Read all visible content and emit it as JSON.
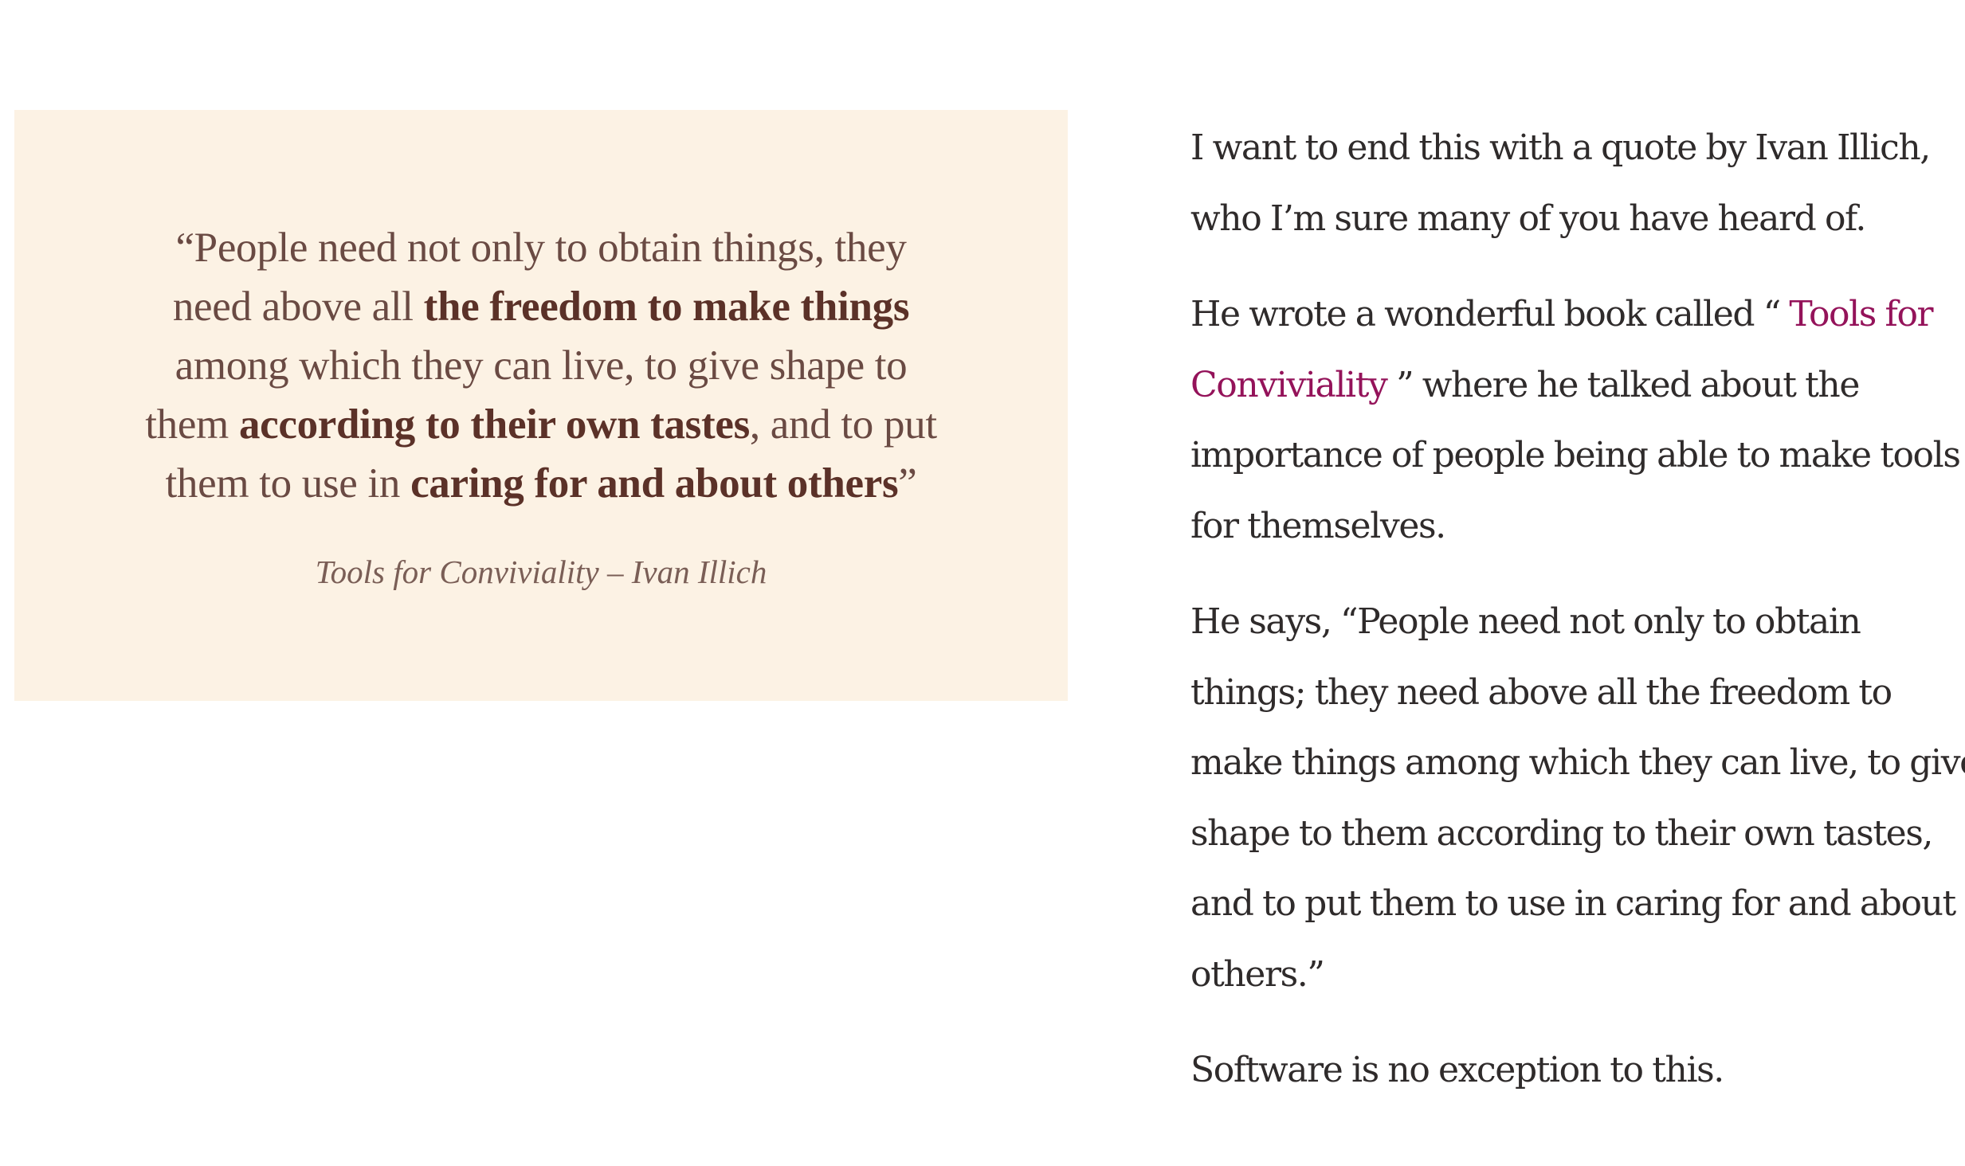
{
  "quote_card": {
    "lines": [
      {
        "plain1": "“People need not only to obtain things, they"
      },
      {
        "plain1": "need above all ",
        "bold1": "the freedom to make things"
      },
      {
        "plain1": "among which they can live, to give shape to"
      },
      {
        "plain1": "them ",
        "bold1": "according to their own tastes",
        "plain2": ", and to put"
      },
      {
        "plain1": "them to use in ",
        "bold1": "caring for and about others",
        "plain2": "”"
      }
    ],
    "source": "Tools for Conviviality – Ivan Illich"
  },
  "article": {
    "p1": {
      "line1": "I want to end this with a quote by Ivan Illich,",
      "line2": "who I’m sure many of you have heard of."
    },
    "p2": {
      "line1_before": "He wrote a wonderful book called “ ",
      "link_part1": "Tools for",
      "link_part2": "Conviviality",
      "line2_after": " ” where he talked about the",
      "line3": "importance of people being able to make tools",
      "line4": "for themselves."
    },
    "p3": {
      "line1": "He says, “People need not only to obtain",
      "line2": "things; they need above all the freedom to",
      "line3": "make things among which they can live, to give",
      "line4": "shape to them according to their own tastes,",
      "line5": "and to put them to use in caring for and about",
      "line6": "others.”"
    },
    "p4": {
      "line1": "Software is no exception to this."
    },
    "link_color": "#94135a"
  }
}
